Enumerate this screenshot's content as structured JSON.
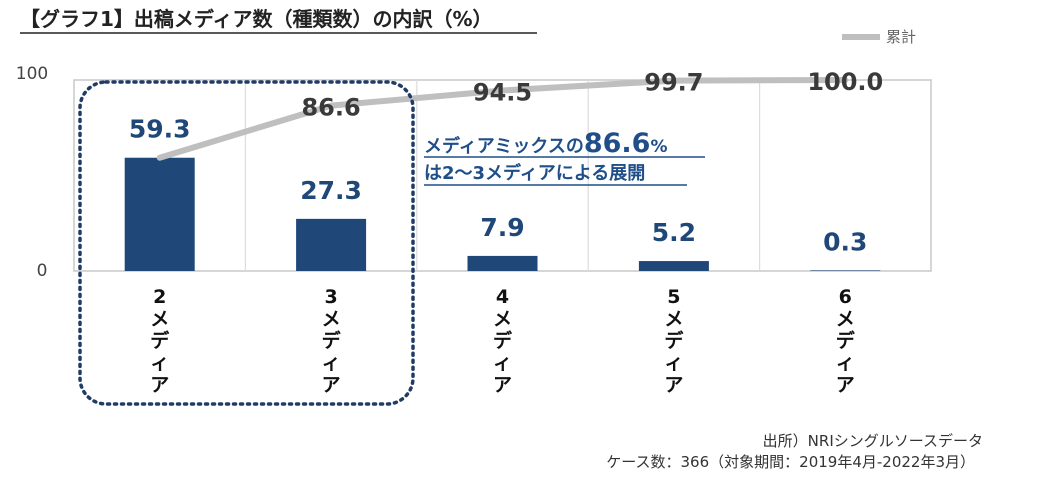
{
  "chart_data": {
    "type": "bar",
    "title": "【グラフ1】出稿メディア数（種類数）の内訳（%）",
    "categories": [
      "2メディア",
      "3メディア",
      "4メディア",
      "5メディア",
      "6メディア"
    ],
    "category_numbers": [
      "2",
      "3",
      "4",
      "5",
      "6"
    ],
    "category_suffix": "メディア",
    "series": [
      {
        "values": [
          59.3,
          27.3,
          7.9,
          5.2,
          0.3
        ],
        "labels": [
          "59.3",
          "27.3",
          "7.9",
          "5.2",
          "0.3"
        ],
        "color": "#1f4778",
        "kind": "bar"
      },
      {
        "name": "累計",
        "values": [
          59.3,
          86.6,
          94.5,
          99.7,
          100.0
        ],
        "labels": [
          "",
          "86.6",
          "94.5",
          "99.7",
          "100.0"
        ],
        "color": "#bfbfbf",
        "kind": "line"
      }
    ],
    "y_ticks": [
      "0",
      "100"
    ],
    "ylim": [
      0,
      100
    ],
    "grid": false,
    "legend": "top-right",
    "annotation": {
      "line1_pre": "メディアミックスの",
      "line1_value": "86.6",
      "line1_unit": "%",
      "line2": "は2〜3メディアによる展開",
      "highlight": "dotted box around 2メディア and 3メディア",
      "color": "#1f4e88"
    },
    "source_lines": [
      "出所）NRIシングルソースデータ",
      "ケース数：366（対象期間：2019年4月-2022年3月）"
    ]
  }
}
